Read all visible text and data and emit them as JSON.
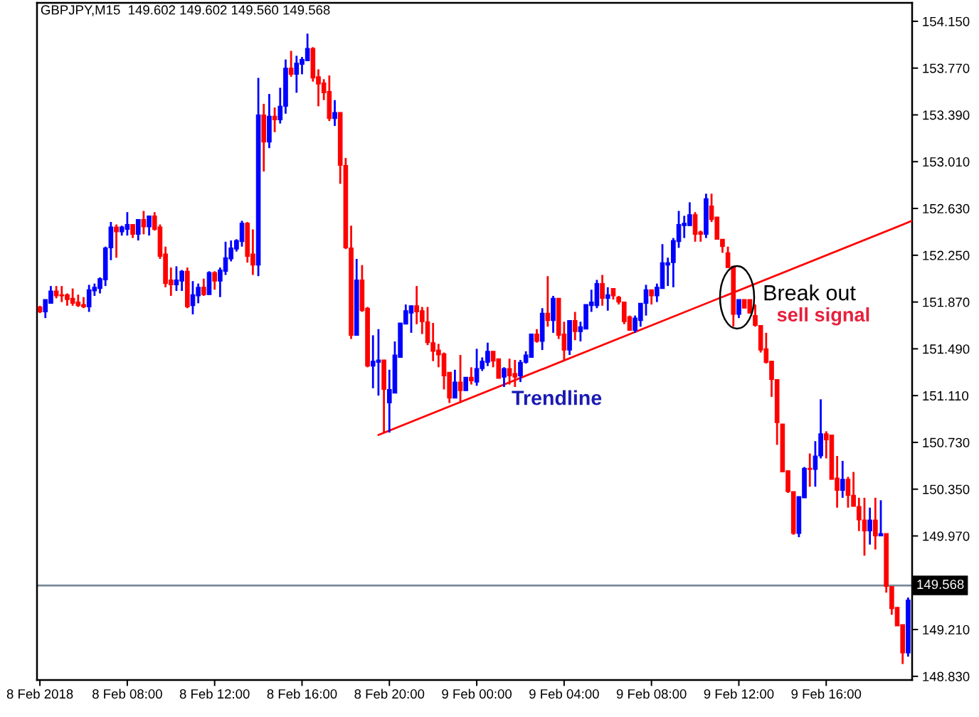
{
  "chart_data": {
    "type": "candlestick",
    "title": "GBPJPY,M15  149.602 149.602 149.560 149.568",
    "series": [
      {
        "x": [
          "2018-02-08T04:00",
          "2018-02-08T04:15",
          "2018-02-08T04:30",
          "2018-02-08T04:45",
          "2018-02-08T05:00",
          "2018-02-08T05:15",
          "2018-02-08T05:30",
          "2018-02-08T05:45",
          "2018-02-08T06:00",
          "2018-02-08T06:15",
          "2018-02-08T06:30",
          "2018-02-08T06:45",
          "2018-02-08T07:00",
          "2018-02-08T07:15",
          "2018-02-08T07:30",
          "2018-02-08T07:45",
          "2018-02-08T08:00",
          "2018-02-08T08:15",
          "2018-02-08T08:30",
          "2018-02-08T08:45",
          "2018-02-08T09:00",
          "2018-02-08T09:15",
          "2018-02-08T09:30",
          "2018-02-08T09:45",
          "2018-02-08T10:00",
          "2018-02-08T10:15",
          "2018-02-08T10:30",
          "2018-02-08T10:45",
          "2018-02-08T11:00",
          "2018-02-08T11:15",
          "2018-02-08T11:30",
          "2018-02-08T11:45",
          "2018-02-08T12:00",
          "2018-02-08T12:15",
          "2018-02-08T12:30",
          "2018-02-08T12:45",
          "2018-02-08T13:00",
          "2018-02-08T13:15",
          "2018-02-08T13:30",
          "2018-02-08T13:45",
          "2018-02-08T14:00",
          "2018-02-08T14:15",
          "2018-02-08T14:30",
          "2018-02-08T14:45",
          "2018-02-08T15:00",
          "2018-02-08T15:15",
          "2018-02-08T15:30",
          "2018-02-08T15:45",
          "2018-02-08T16:00",
          "2018-02-08T16:15",
          "2018-02-08T16:30",
          "2018-02-08T16:45",
          "2018-02-08T17:00",
          "2018-02-08T17:15",
          "2018-02-08T17:30",
          "2018-02-08T17:45",
          "2018-02-08T18:00",
          "2018-02-08T18:15",
          "2018-02-08T18:30",
          "2018-02-08T18:45",
          "2018-02-08T19:00",
          "2018-02-08T19:15",
          "2018-02-08T19:30",
          "2018-02-08T19:45",
          "2018-02-08T20:00",
          "2018-02-08T20:15",
          "2018-02-08T20:30",
          "2018-02-08T20:45",
          "2018-02-08T21:00",
          "2018-02-08T21:15",
          "2018-02-08T21:30",
          "2018-02-08T21:45",
          "2018-02-08T22:00",
          "2018-02-08T22:15",
          "2018-02-08T22:30",
          "2018-02-08T22:45",
          "2018-02-08T23:00",
          "2018-02-08T23:15",
          "2018-02-08T23:30",
          "2018-02-08T23:45",
          "2018-02-09T00:00",
          "2018-02-09T00:15",
          "2018-02-09T00:30",
          "2018-02-09T00:45",
          "2018-02-09T01:00",
          "2018-02-09T01:15",
          "2018-02-09T01:30",
          "2018-02-09T01:45",
          "2018-02-09T02:00",
          "2018-02-09T02:15",
          "2018-02-09T02:30",
          "2018-02-09T02:45",
          "2018-02-09T03:00",
          "2018-02-09T03:15",
          "2018-02-09T03:30",
          "2018-02-09T03:45",
          "2018-02-09T04:00",
          "2018-02-09T04:15",
          "2018-02-09T04:30",
          "2018-02-09T04:45",
          "2018-02-09T05:00",
          "2018-02-09T05:15",
          "2018-02-09T05:30",
          "2018-02-09T05:45",
          "2018-02-09T06:00",
          "2018-02-09T06:15",
          "2018-02-09T06:30",
          "2018-02-09T06:45",
          "2018-02-09T07:00",
          "2018-02-09T07:15",
          "2018-02-09T07:30",
          "2018-02-09T07:45",
          "2018-02-09T08:00",
          "2018-02-09T08:15",
          "2018-02-09T08:30",
          "2018-02-09T08:45",
          "2018-02-09T09:00",
          "2018-02-09T09:15",
          "2018-02-09T09:30",
          "2018-02-09T09:45",
          "2018-02-09T10:00",
          "2018-02-09T10:15",
          "2018-02-09T10:30",
          "2018-02-09T10:45",
          "2018-02-09T11:00",
          "2018-02-09T11:15",
          "2018-02-09T11:30",
          "2018-02-09T11:45",
          "2018-02-09T12:00",
          "2018-02-09T12:15",
          "2018-02-09T12:30",
          "2018-02-09T12:45",
          "2018-02-09T13:00",
          "2018-02-09T13:15",
          "2018-02-09T13:30",
          "2018-02-09T13:45",
          "2018-02-09T14:00",
          "2018-02-09T14:15",
          "2018-02-09T14:30",
          "2018-02-09T14:45",
          "2018-02-09T15:00",
          "2018-02-09T15:15",
          "2018-02-09T15:30",
          "2018-02-09T15:45",
          "2018-02-09T16:00",
          "2018-02-09T16:15",
          "2018-02-09T16:30",
          "2018-02-09T16:45",
          "2018-02-09T17:00",
          "2018-02-09T17:15",
          "2018-02-09T17:30",
          "2018-02-09T17:45",
          "2018-02-09T18:00",
          "2018-02-09T18:15",
          "2018-02-09T18:30",
          "2018-02-09T18:45",
          "2018-02-09T19:00",
          "2018-02-09T19:15",
          "2018-02-09T19:30",
          "2018-02-09T19:45"
        ],
        "ohlc": [
          [
            151.83,
            151.84,
            151.78,
            151.79
          ],
          [
            151.79,
            151.89,
            151.74,
            151.89
          ],
          [
            151.86,
            152.0,
            151.86,
            151.96
          ],
          [
            151.96,
            152.0,
            151.9,
            151.92
          ],
          [
            151.93,
            152.0,
            151.87,
            151.92
          ],
          [
            151.93,
            151.94,
            151.84,
            151.89
          ],
          [
            151.9,
            151.98,
            151.84,
            151.86
          ],
          [
            151.87,
            151.93,
            151.83,
            151.84
          ],
          [
            151.85,
            151.91,
            151.82,
            151.83
          ],
          [
            151.83,
            152.01,
            151.79,
            151.97
          ],
          [
            151.96,
            152.02,
            151.92,
            151.99
          ],
          [
            151.98,
            152.07,
            151.94,
            152.06
          ],
          [
            152.05,
            152.32,
            152.0,
            152.31
          ],
          [
            152.31,
            152.52,
            152.21,
            152.48
          ],
          [
            152.48,
            152.5,
            152.23,
            152.44
          ],
          [
            152.44,
            152.49,
            152.41,
            152.48
          ],
          [
            152.46,
            152.6,
            152.41,
            152.5
          ],
          [
            152.5,
            152.5,
            152.39,
            152.42
          ],
          [
            152.42,
            152.54,
            152.37,
            152.54
          ],
          [
            152.54,
            152.61,
            152.42,
            152.48
          ],
          [
            152.48,
            152.57,
            152.41,
            152.57
          ],
          [
            152.57,
            152.6,
            152.45,
            152.46
          ],
          [
            152.48,
            152.5,
            152.22,
            152.24
          ],
          [
            152.26,
            152.32,
            151.99,
            152.02
          ],
          [
            152.05,
            152.15,
            151.92,
            152.01
          ],
          [
            152.01,
            152.16,
            151.96,
            152.05
          ],
          [
            152.04,
            152.13,
            151.96,
            152.12
          ],
          [
            152.12,
            152.15,
            151.82,
            151.83
          ],
          [
            151.84,
            152.04,
            151.77,
            151.93
          ],
          [
            151.92,
            152.02,
            151.86,
            151.99
          ],
          [
            151.99,
            152.06,
            151.92,
            151.93
          ],
          [
            151.93,
            152.12,
            151.93,
            152.11
          ],
          [
            152.11,
            152.12,
            151.97,
            152.04
          ],
          [
            152.04,
            152.15,
            151.91,
            152.13
          ],
          [
            152.12,
            152.36,
            152.09,
            152.23
          ],
          [
            152.22,
            152.37,
            152.2,
            152.31
          ],
          [
            152.3,
            152.38,
            152.28,
            152.37
          ],
          [
            152.36,
            152.53,
            152.32,
            152.51
          ],
          [
            152.51,
            152.52,
            152.19,
            152.24
          ],
          [
            152.26,
            152.46,
            152.09,
            152.17
          ],
          [
            152.17,
            153.69,
            152.08,
            153.39
          ],
          [
            153.39,
            153.48,
            152.93,
            153.17
          ],
          [
            153.17,
            153.56,
            153.12,
            153.38
          ],
          [
            153.38,
            153.45,
            153.25,
            153.35
          ],
          [
            153.35,
            153.61,
            153.32,
            153.46
          ],
          [
            153.46,
            153.84,
            153.4,
            153.77
          ],
          [
            153.77,
            153.91,
            153.7,
            153.72
          ],
          [
            153.72,
            153.87,
            153.57,
            153.81
          ],
          [
            153.8,
            153.86,
            153.72,
            153.84
          ],
          [
            153.83,
            154.05,
            153.83,
            153.93
          ],
          [
            153.93,
            153.94,
            153.66,
            153.69
          ],
          [
            153.7,
            153.76,
            153.46,
            153.64
          ],
          [
            153.65,
            153.68,
            153.51,
            153.57
          ],
          [
            153.58,
            153.71,
            153.34,
            153.36
          ],
          [
            153.36,
            153.51,
            153.3,
            153.41
          ],
          [
            153.41,
            153.41,
            152.83,
            152.98
          ],
          [
            152.98,
            153.04,
            152.3,
            152.31
          ],
          [
            152.31,
            152.49,
            151.57,
            151.6
          ],
          [
            151.6,
            152.22,
            151.6,
            152.05
          ],
          [
            152.05,
            152.17,
            151.79,
            151.8
          ],
          [
            151.82,
            151.83,
            151.34,
            151.35
          ],
          [
            151.35,
            151.6,
            151.17,
            151.39
          ],
          [
            151.38,
            151.65,
            151.11,
            151.4
          ],
          [
            151.4,
            151.4,
            150.81,
            151.16
          ],
          [
            151.05,
            151.32,
            150.81,
            151.16
          ],
          [
            151.13,
            151.55,
            151.13,
            151.44
          ],
          [
            151.42,
            151.7,
            151.42,
            151.7
          ],
          [
            151.69,
            151.85,
            151.69,
            151.8
          ],
          [
            151.78,
            151.84,
            151.62,
            151.84
          ],
          [
            151.84,
            152.0,
            151.69,
            151.79
          ],
          [
            151.8,
            151.83,
            151.61,
            151.71
          ],
          [
            151.71,
            151.83,
            151.52,
            151.54
          ],
          [
            151.54,
            151.7,
            151.39,
            151.47
          ],
          [
            151.48,
            151.53,
            151.34,
            151.44
          ],
          [
            151.45,
            151.46,
            151.16,
            151.27
          ],
          [
            151.3,
            151.3,
            151.05,
            151.09
          ],
          [
            151.09,
            151.32,
            151.09,
            151.22
          ],
          [
            151.22,
            151.44,
            151.05,
            151.15
          ],
          [
            151.15,
            151.26,
            151.15,
            151.26
          ],
          [
            151.26,
            151.34,
            151.2,
            151.23
          ],
          [
            151.22,
            151.49,
            151.19,
            151.33
          ],
          [
            151.33,
            151.42,
            151.31,
            151.39
          ],
          [
            151.38,
            151.54,
            151.35,
            151.47
          ],
          [
            151.47,
            151.47,
            151.34,
            151.39
          ],
          [
            151.41,
            151.41,
            151.25,
            151.25
          ],
          [
            151.26,
            151.34,
            151.18,
            151.33
          ],
          [
            151.33,
            151.41,
            151.2,
            151.27
          ],
          [
            151.29,
            151.4,
            151.18,
            151.26
          ],
          [
            151.27,
            151.4,
            151.22,
            151.38
          ],
          [
            151.38,
            151.47,
            151.37,
            151.44
          ],
          [
            151.42,
            151.61,
            151.42,
            151.61
          ],
          [
            151.61,
            151.65,
            151.54,
            151.55
          ],
          [
            151.55,
            151.82,
            151.48,
            151.78
          ],
          [
            151.78,
            152.08,
            151.67,
            151.72
          ],
          [
            151.72,
            151.92,
            151.62,
            151.9
          ],
          [
            151.9,
            151.9,
            151.57,
            151.6
          ],
          [
            151.61,
            151.71,
            151.4,
            151.48
          ],
          [
            151.48,
            151.72,
            151.44,
            151.72
          ],
          [
            151.72,
            151.79,
            151.56,
            151.63
          ],
          [
            151.63,
            151.71,
            151.55,
            151.67
          ],
          [
            151.65,
            151.85,
            151.65,
            151.85
          ],
          [
            151.84,
            151.97,
            151.79,
            151.87
          ],
          [
            151.84,
            152.05,
            151.82,
            152.02
          ],
          [
            152.02,
            152.09,
            151.84,
            151.9
          ],
          [
            151.9,
            151.99,
            151.8,
            151.93
          ],
          [
            151.98,
            151.98,
            151.89,
            151.92
          ],
          [
            151.91,
            151.92,
            151.85,
            151.87
          ],
          [
            151.87,
            151.87,
            151.69,
            151.71
          ],
          [
            151.75,
            151.76,
            151.64,
            151.64
          ],
          [
            151.64,
            151.76,
            151.62,
            151.74
          ],
          [
            151.72,
            151.86,
            151.67,
            151.86
          ],
          [
            151.86,
            152.01,
            151.76,
            151.97
          ],
          [
            151.97,
            151.97,
            151.85,
            151.92
          ],
          [
            151.92,
            152.02,
            151.87,
            151.99
          ],
          [
            151.98,
            152.34,
            151.98,
            152.19
          ],
          [
            152.17,
            152.23,
            152.0,
            152.19
          ],
          [
            152.19,
            152.39,
            151.99,
            152.37
          ],
          [
            152.36,
            152.61,
            152.31,
            152.5
          ],
          [
            152.49,
            152.57,
            152.39,
            152.51
          ],
          [
            152.49,
            152.68,
            152.49,
            152.58
          ],
          [
            152.58,
            152.6,
            152.36,
            152.42
          ],
          [
            152.44,
            152.45,
            152.36,
            152.42
          ],
          [
            152.42,
            152.75,
            152.39,
            152.71
          ],
          [
            152.65,
            152.75,
            152.52,
            152.54
          ],
          [
            152.56,
            152.56,
            152.38,
            152.38
          ],
          [
            152.38,
            152.38,
            152.27,
            152.32
          ],
          [
            152.27,
            152.32,
            152.15,
            152.15
          ],
          [
            152.16,
            152.16,
            151.67,
            151.77
          ],
          [
            151.77,
            151.89,
            151.74,
            151.89
          ],
          [
            151.89,
            151.89,
            151.82,
            151.82
          ],
          [
            151.89,
            151.89,
            151.78,
            151.78
          ],
          [
            151.76,
            151.85,
            151.67,
            151.68
          ],
          [
            151.68,
            151.68,
            151.46,
            151.48
          ],
          [
            151.49,
            151.62,
            151.37,
            151.38
          ],
          [
            151.39,
            151.39,
            151.1,
            151.24
          ],
          [
            151.24,
            151.24,
            150.71,
            150.89
          ],
          [
            150.88,
            150.88,
            150.49,
            150.49
          ],
          [
            150.5,
            150.5,
            150.32,
            150.33
          ],
          [
            150.33,
            150.33,
            149.98,
            149.99
          ],
          [
            149.99,
            150.29,
            149.96,
            150.29
          ],
          [
            150.28,
            150.53,
            150.28,
            150.52
          ],
          [
            150.52,
            150.64,
            150.37,
            150.51
          ],
          [
            150.51,
            150.74,
            150.37,
            150.62
          ],
          [
            150.62,
            151.08,
            150.6,
            150.8
          ],
          [
            150.8,
            150.82,
            150.6,
            150.75
          ],
          [
            150.79,
            150.79,
            150.43,
            150.43
          ],
          [
            150.44,
            150.62,
            150.2,
            150.34
          ],
          [
            150.34,
            150.58,
            150.28,
            150.43
          ],
          [
            150.43,
            150.45,
            150.2,
            150.3
          ],
          [
            150.3,
            150.49,
            150.21,
            150.21
          ],
          [
            150.21,
            150.28,
            150.01,
            150.1
          ],
          [
            150.1,
            150.28,
            149.81,
            150.01
          ],
          [
            150.01,
            150.2,
            149.9,
            150.1
          ],
          [
            150.1,
            150.28,
            149.86,
            149.97
          ],
          [
            149.97,
            150.26,
            149.97,
            149.99
          ],
          [
            149.99,
            149.99,
            149.51,
            149.56
          ],
          [
            149.56,
            149.56,
            149.33,
            149.38
          ],
          [
            149.39,
            149.39,
            149.24,
            149.24
          ],
          [
            149.25,
            149.25,
            148.93,
            149.02
          ],
          [
            149.02,
            149.47,
            148.99,
            149.45
          ]
        ],
        "colors": [
          "#ff0000",
          "#0000ff",
          "#0000ff",
          "#ff0000",
          "#ff0000",
          "#ff0000",
          "#ff0000",
          "#ff0000",
          "#ff0000",
          "#0000ff",
          "#0000ff",
          "#0000ff",
          "#0000ff",
          "#0000ff",
          "#ff0000",
          "#0000ff",
          "#0000ff",
          "#ff0000",
          "#0000ff",
          "#ff0000",
          "#0000ff",
          "#ff0000",
          "#ff0000",
          "#ff0000",
          "#ff0000",
          "#0000ff",
          "#0000ff",
          "#ff0000",
          "#0000ff",
          "#0000ff",
          "#ff0000",
          "#0000ff",
          "#ff0000",
          "#0000ff",
          "#0000ff",
          "#0000ff",
          "#0000ff",
          "#0000ff",
          "#ff0000",
          "#ff0000",
          "#0000ff",
          "#ff0000",
          "#0000ff",
          "#ff0000",
          "#0000ff",
          "#0000ff",
          "#ff0000",
          "#0000ff",
          "#0000ff",
          "#0000ff",
          "#ff0000",
          "#ff0000",
          "#ff0000",
          "#ff0000",
          "#0000ff",
          "#ff0000",
          "#ff0000",
          "#ff0000",
          "#0000ff",
          "#ff0000",
          "#ff0000",
          "#0000ff",
          "#0000ff",
          "#ff0000",
          "#0000ff",
          "#0000ff",
          "#0000ff",
          "#0000ff",
          "#0000ff",
          "#ff0000",
          "#ff0000",
          "#ff0000",
          "#ff0000",
          "#ff0000",
          "#ff0000",
          "#ff0000",
          "#0000ff",
          "#ff0000",
          "#0000ff",
          "#ff0000",
          "#0000ff",
          "#0000ff",
          "#0000ff",
          "#ff0000",
          "#ff0000",
          "#0000ff",
          "#ff0000",
          "#ff0000",
          "#0000ff",
          "#0000ff",
          "#0000ff",
          "#ff0000",
          "#0000ff",
          "#ff0000",
          "#0000ff",
          "#ff0000",
          "#ff0000",
          "#0000ff",
          "#ff0000",
          "#0000ff",
          "#0000ff",
          "#0000ff",
          "#0000ff",
          "#ff0000",
          "#0000ff",
          "#ff0000",
          "#ff0000",
          "#ff0000",
          "#ff0000",
          "#0000ff",
          "#0000ff",
          "#0000ff",
          "#ff0000",
          "#0000ff",
          "#0000ff",
          "#0000ff",
          "#0000ff",
          "#0000ff",
          "#0000ff",
          "#0000ff",
          "#ff0000",
          "#ff0000",
          "#0000ff",
          "#ff0000",
          "#ff0000",
          "#ff0000",
          "#ff0000",
          "#ff0000",
          "#0000ff",
          "#ff0000",
          "#ff0000",
          "#ff0000",
          "#ff0000",
          "#ff0000",
          "#ff0000",
          "#ff0000",
          "#ff0000",
          "#ff0000",
          "#ff0000",
          "#0000ff",
          "#0000ff",
          "#ff0000",
          "#0000ff",
          "#0000ff",
          "#ff0000",
          "#ff0000",
          "#ff0000",
          "#0000ff",
          "#ff0000",
          "#ff0000",
          "#ff0000",
          "#ff0000",
          "#0000ff",
          "#ff0000",
          "#0000ff",
          "#ff0000",
          "#ff0000",
          "#ff0000",
          "#ff0000",
          "#0000ff"
        ]
      },
      {
        "type": "line",
        "x": [
          "2018-02-08T19:30",
          "2018-02-09T19:56"
        ],
        "values": [
          150.79,
          152.53
        ],
        "color": "#ff0000"
      }
    ],
    "xlim": [
      "2018-02-08T03:52",
      "2018-02-09T19:56"
    ],
    "xticks": [
      {
        "value": "2018-02-08T04:00",
        "label": "8 Feb 2018"
      },
      {
        "value": "2018-02-08T08:00",
        "label": "8 Feb 08:00"
      },
      {
        "value": "2018-02-08T12:00",
        "label": "8 Feb 12:00"
      },
      {
        "value": "2018-02-08T16:00",
        "label": "8 Feb 16:00"
      },
      {
        "value": "2018-02-08T20:00",
        "label": "8 Feb 20:00"
      },
      {
        "value": "2018-02-09T00:00",
        "label": "9 Feb 00:00"
      },
      {
        "value": "2018-02-09T04:00",
        "label": "9 Feb 04:00"
      },
      {
        "value": "2018-02-09T08:00",
        "label": "9 Feb 08:00"
      },
      {
        "value": "2018-02-09T12:00",
        "label": "9 Feb 12:00"
      },
      {
        "value": "2018-02-09T16:00",
        "label": "9 Feb 16:00"
      }
    ],
    "ylim": [
      148.8,
      154.3
    ],
    "yticks": [
      {
        "value": 154.15,
        "label": "154.150"
      },
      {
        "value": 153.77,
        "label": "153.770"
      },
      {
        "value": 153.39,
        "label": "153.390"
      },
      {
        "value": 153.01,
        "label": "153.010"
      },
      {
        "value": 152.63,
        "label": "152.630"
      },
      {
        "value": 152.25,
        "label": "152.250"
      },
      {
        "value": 151.87,
        "label": "151.870"
      },
      {
        "value": 151.49,
        "label": "151.490"
      },
      {
        "value": 151.11,
        "label": "151.110"
      },
      {
        "value": 150.73,
        "label": "150.730"
      },
      {
        "value": 150.35,
        "label": "150.350"
      },
      {
        "value": 149.97,
        "label": "149.970"
      },
      {
        "value": 149.21,
        "label": "149.210"
      },
      {
        "value": 148.83,
        "label": "148.830"
      }
    ],
    "ref_lines": [
      {
        "axis": "y",
        "value": 149.568,
        "label": "149.568",
        "color": "#778899"
      }
    ],
    "annotations": [
      "Break out",
      "sell signal",
      "Trendline"
    ]
  }
}
